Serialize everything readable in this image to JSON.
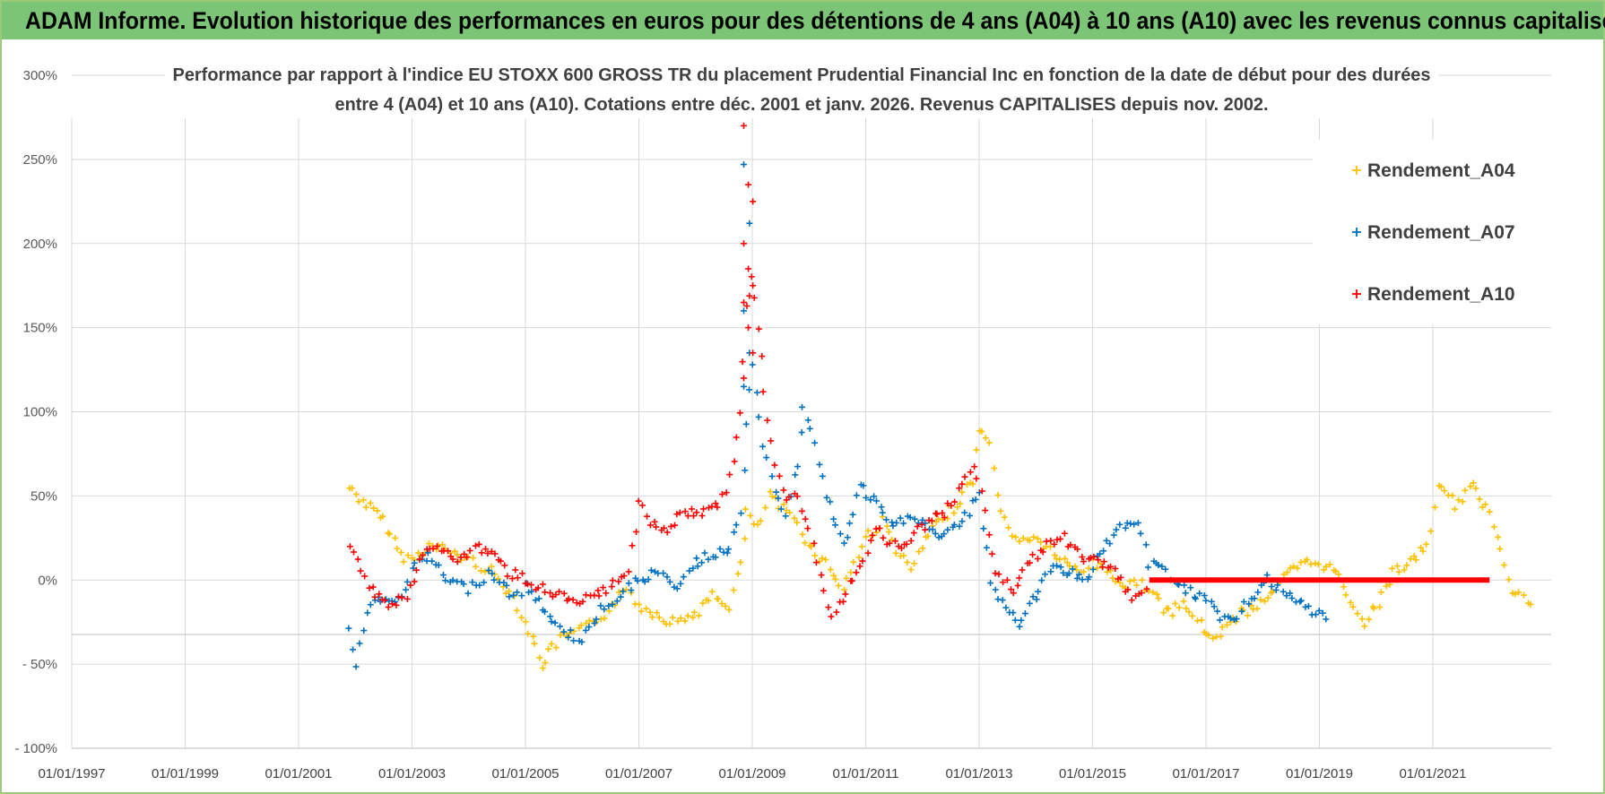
{
  "banner": {
    "title": "ADAM Informe. Evolution historique des performances en euros pour des détentions de 4 ans (A04) à 10 ans (A10) avec les revenus connus capitalisés"
  },
  "chart_data": {
    "type": "scatter",
    "title_line1": "Performance par rapport à l'indice EU STOXX 600 GROSS TR  du placement Prudential Financial Inc en fonction de la date de début pour des durées",
    "title_line2": "entre 4 (A04) et 10 ans (A10). Cotations entre déc. 2001 et janv. 2026. Revenus CAPITALISES depuis nov. 2002.",
    "xlabel": "",
    "ylabel": "",
    "ylim": [
      -100,
      300
    ],
    "xlim": [
      1997.0,
      2022.0
    ],
    "y_ticks": [
      "300%",
      "250%",
      "200%",
      "150%",
      "100%",
      "50%",
      "0%",
      "- 50%",
      "- 100%"
    ],
    "x_ticks": [
      "01/01/1997",
      "01/01/1999",
      "01/01/2001",
      "01/01/2003",
      "01/01/2005",
      "01/01/2007",
      "01/01/2009",
      "01/01/2011",
      "01/01/2013",
      "01/01/2015",
      "01/01/2017",
      "01/01/2019",
      "01/01/2021"
    ],
    "legend_position": "top-right",
    "series": [
      {
        "name": "Rendement_A04",
        "color": "#ffc000",
        "x": [
          2001.9,
          2002.2,
          2002.5,
          2002.8,
          2003.0,
          2003.3,
          2003.6,
          2004.0,
          2004.4,
          2004.8,
          2005.0,
          2005.3,
          2005.6,
          2006.0,
          2006.4,
          2006.8,
          2007.0,
          2007.3,
          2007.6,
          2008.0,
          2008.3,
          2008.6,
          2008.8,
          2008.9,
          2009.1,
          2009.3,
          2009.6,
          2009.8,
          2010.0,
          2010.3,
          2010.6,
          2010.8,
          2011.0,
          2011.3,
          2011.6,
          2011.8,
          2012.0,
          2012.3,
          2012.6,
          2012.9,
          2013.0,
          2013.2,
          2013.4,
          2013.6,
          2013.9,
          2014.2,
          2014.5,
          2014.8,
          2015.0,
          2015.3,
          2015.6,
          2015.8,
          2016.0,
          2016.3,
          2016.6,
          2016.9,
          2017.0,
          2017.3,
          2017.6,
          2017.9,
          2018.2,
          2018.5,
          2018.8,
          2019.0,
          2019.3,
          2019.6,
          2019.8,
          2020.1,
          2020.3,
          2020.6,
          2020.9,
          2021.1,
          2021.4,
          2021.7,
          2022.0
        ],
        "y": [
          55,
          45,
          35,
          15,
          12,
          20,
          18,
          12,
          5,
          -10,
          -25,
          -50,
          -35,
          -30,
          -20,
          -5,
          -15,
          -20,
          -25,
          -20,
          -10,
          -15,
          10,
          40,
          30,
          50,
          40,
          35,
          20,
          10,
          -5,
          10,
          25,
          35,
          15,
          5,
          20,
          35,
          45,
          60,
          90,
          80,
          40,
          25,
          25,
          20,
          10,
          5,
          10,
          5,
          -5,
          0,
          -5,
          -20,
          -15,
          -25,
          -35,
          -30,
          -20,
          -15,
          -5,
          5,
          10,
          10,
          5,
          -15,
          -25,
          -10,
          5,
          10,
          20,
          55,
          45,
          55,
          40
        ],
        "y_continued_note": "",
        "x2": [
          2022.0,
          2022.2,
          2022.4,
          2022.6,
          2022.8
        ],
        "y2": [
          40,
          20,
          -5,
          -10,
          -20
        ]
      },
      {
        "name": "Rendement_A07",
        "color": "#0070c0",
        "x": [
          2001.9,
          2002.0,
          2002.2,
          2002.4,
          2002.7,
          2003.0,
          2003.3,
          2003.6,
          2004.0,
          2004.4,
          2004.8,
          2005.0,
          2005.3,
          2005.6,
          2006.0,
          2006.4,
          2006.8,
          2007.0,
          2007.3,
          2007.6,
          2008.0,
          2008.3,
          2008.6,
          2008.8,
          2008.9,
          2009.0,
          2009.2,
          2009.4,
          2009.6,
          2009.8,
          2009.9,
          2010.1,
          2010.3,
          2010.6,
          2010.9,
          2011.2,
          2011.5,
          2011.8,
          2012.1,
          2012.4,
          2012.7,
          2013.0,
          2013.2,
          2013.4,
          2013.7,
          2014.0,
          2014.3,
          2014.6,
          2014.9,
          2015.2,
          2015.5,
          2015.8,
          2016.0,
          2016.3,
          2016.6,
          2016.9,
          2017.2,
          2017.5,
          2017.8,
          2018.1,
          2018.4,
          2018.7,
          2019.0,
          2019.2
        ],
        "y": [
          -30,
          -50,
          -20,
          -10,
          -15,
          5,
          15,
          0,
          -5,
          5,
          -10,
          -5,
          -15,
          -30,
          -35,
          -15,
          -5,
          0,
          5,
          -5,
          10,
          15,
          20,
          40,
          90,
          130,
          80,
          50,
          40,
          70,
          105,
          80,
          50,
          20,
          55,
          45,
          30,
          40,
          30,
          25,
          35,
          50,
          0,
          -15,
          -25,
          -10,
          10,
          5,
          0,
          20,
          30,
          35,
          10,
          5,
          -5,
          -10,
          -20,
          -25,
          -10,
          0,
          -10,
          -15,
          -20,
          -25
        ],
        "x2": [],
        "y2": []
      },
      {
        "name": "Rendement_A10",
        "color": "#ff0000",
        "x": [
          2001.9,
          2002.1,
          2002.3,
          2002.6,
          2002.9,
          2003.2,
          2003.5,
          2003.8,
          2004.1,
          2004.4,
          2004.7,
          2005.0,
          2005.3,
          2005.6,
          2005.9,
          2006.2,
          2006.5,
          2006.8,
          2007.0,
          2007.2,
          2007.5,
          2007.8,
          2008.1,
          2008.4,
          2008.6,
          2008.8,
          2008.9,
          2009.0,
          2009.1,
          2009.2,
          2009.4,
          2009.6,
          2009.8,
          2010.0,
          2010.2,
          2010.4,
          2010.6,
          2010.9,
          2011.2,
          2011.5,
          2011.8,
          2012.1,
          2012.4,
          2012.7,
          2012.9,
          2013.1,
          2013.3,
          2013.6,
          2013.9,
          2014.2,
          2014.5,
          2014.8,
          2015.1,
          2015.4,
          2015.7,
          2016.0
        ],
        "y": [
          20,
          5,
          -5,
          -15,
          -10,
          15,
          20,
          10,
          20,
          15,
          5,
          0,
          -5,
          -10,
          -15,
          -10,
          -5,
          5,
          45,
          35,
          30,
          40,
          40,
          45,
          60,
          100,
          160,
          180,
          150,
          110,
          70,
          45,
          50,
          30,
          0,
          -20,
          -10,
          10,
          30,
          20,
          25,
          35,
          40,
          55,
          70,
          40,
          5,
          -5,
          10,
          20,
          25,
          15,
          10,
          5,
          -10,
          -5
        ],
        "x2": [
          2016.0,
          2022.0
        ],
        "y2": [
          0,
          0
        ]
      }
    ]
  }
}
